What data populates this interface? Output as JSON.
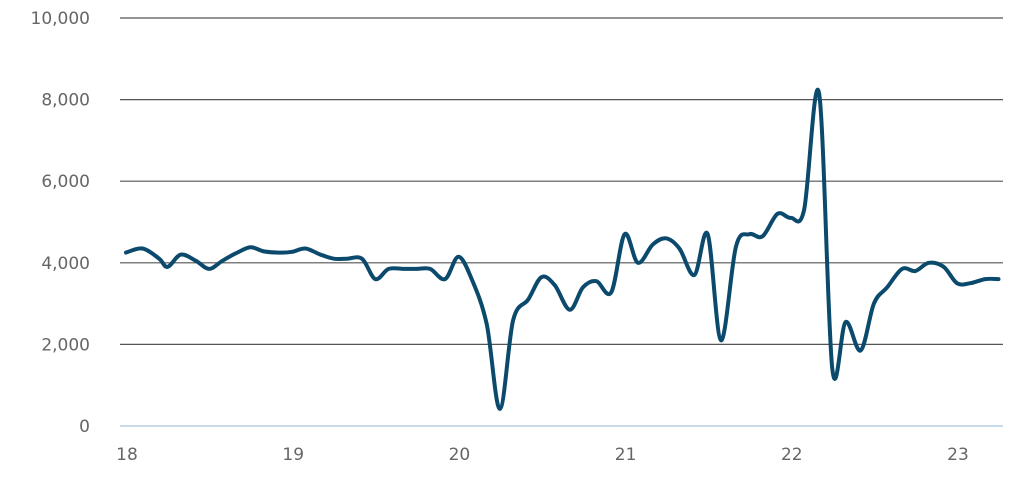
{
  "chart_data": {
    "type": "line",
    "title": "",
    "xlabel": "",
    "ylabel": "",
    "xlim": [
      18,
      23.25
    ],
    "ylim": [
      0,
      10000
    ],
    "x_ticks": [
      18,
      19,
      20,
      21,
      22,
      23
    ],
    "x_tick_labels": [
      "18",
      "19",
      "20",
      "21",
      "22",
      "23"
    ],
    "y_ticks": [
      0,
      2000,
      4000,
      6000,
      8000,
      10000
    ],
    "y_tick_labels": [
      "0",
      "2,000",
      "4,000",
      "6,000",
      "8,000",
      "10,000"
    ],
    "grid": "horizontal",
    "legend": "none",
    "color": "#0b4a6c",
    "series": [
      {
        "x": [
          18.0,
          18.1,
          18.2,
          18.25,
          18.33,
          18.42,
          18.5,
          18.58,
          18.67,
          18.75,
          18.83,
          18.92,
          19.0,
          19.08,
          19.17,
          19.25,
          19.33,
          19.42,
          19.5,
          19.58,
          19.67,
          19.75,
          19.83,
          19.92,
          20.0,
          20.08,
          20.17,
          20.25,
          20.33,
          20.42,
          20.5,
          20.58,
          20.67,
          20.75,
          20.83,
          20.92,
          21.0,
          21.08,
          21.17,
          21.25,
          21.33,
          21.42,
          21.5,
          21.58,
          21.67,
          21.75,
          21.83,
          21.92,
          22.0,
          22.08,
          22.17,
          22.25,
          22.33,
          22.42,
          22.5,
          22.58,
          22.67,
          22.75,
          22.83,
          22.92,
          23.0,
          23.08,
          23.17,
          23.25
        ],
        "y": [
          4250,
          4350,
          4100,
          3900,
          4200,
          4050,
          3850,
          4050,
          4250,
          4380,
          4280,
          4250,
          4270,
          4350,
          4200,
          4100,
          4100,
          4100,
          3600,
          3850,
          3850,
          3850,
          3850,
          3600,
          4150,
          3600,
          2500,
          420,
          2600,
          3100,
          3650,
          3450,
          2850,
          3400,
          3550,
          3280,
          4700,
          4000,
          4450,
          4600,
          4350,
          3700,
          4700,
          2100,
          4400,
          4700,
          4650,
          5200,
          5100,
          5300,
          8150,
          1400,
          2550,
          1850,
          3000,
          3400,
          3850,
          3800,
          4000,
          3900,
          3500,
          3500,
          3600,
          3600
        ]
      }
    ]
  }
}
